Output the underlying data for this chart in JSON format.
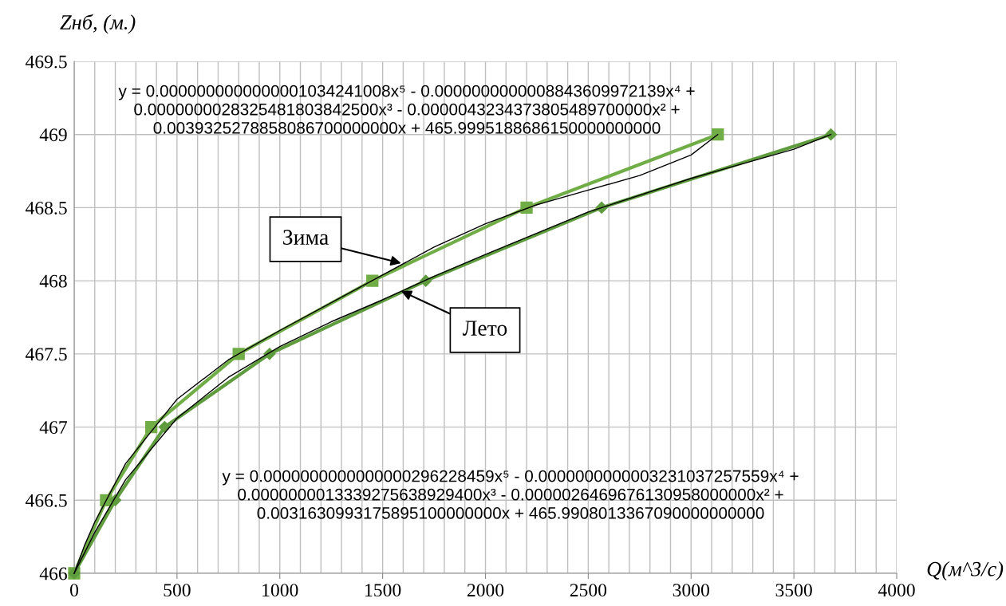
{
  "chart_data": {
    "type": "line",
    "xlabel": "Q(м^3/с)",
    "ylabel": "Zнб, (м.)",
    "xlim": [
      0,
      4000
    ],
    "ylim": [
      466,
      469.5
    ],
    "xticks": [
      0,
      {
        "value": 100,
        "label": null
      },
      {
        "value": 200,
        "label": null
      },
      {
        "value": 300,
        "label": null
      },
      {
        "value": 400,
        "label": null
      },
      500,
      {
        "value": 600,
        "label": null
      },
      {
        "value": 700,
        "label": null
      },
      {
        "value": 800,
        "label": null
      },
      {
        "value": 900,
        "label": null
      },
      1000,
      {
        "value": 1100,
        "label": null
      },
      {
        "value": 1200,
        "label": null
      },
      {
        "value": 1300,
        "label": null
      },
      {
        "value": 1400,
        "label": null
      },
      1500,
      {
        "value": 1600,
        "label": null
      },
      {
        "value": 1700,
        "label": null
      },
      {
        "value": 1800,
        "label": null
      },
      {
        "value": 1900,
        "label": null
      },
      2000,
      {
        "value": 2100,
        "label": null
      },
      {
        "value": 2200,
        "label": null
      },
      {
        "value": 2300,
        "label": null
      },
      {
        "value": 2400,
        "label": null
      },
      2500,
      {
        "value": 2600,
        "label": null
      },
      {
        "value": 2700,
        "label": null
      },
      {
        "value": 2800,
        "label": null
      },
      {
        "value": 2900,
        "label": null
      },
      3000,
      {
        "value": 3100,
        "label": null
      },
      {
        "value": 3200,
        "label": null
      },
      {
        "value": 3300,
        "label": null
      },
      {
        "value": 3400,
        "label": null
      },
      3500,
      {
        "value": 3600,
        "label": null
      },
      {
        "value": 3700,
        "label": null
      },
      {
        "value": 3800,
        "label": null
      },
      {
        "value": 3900,
        "label": null
      },
      4000
    ],
    "yticks": [
      466,
      466.5,
      467,
      467.5,
      468,
      468.5,
      469,
      469.5
    ],
    "grid": true,
    "legend": false,
    "series": [
      {
        "color": "#70ad47",
        "marker": "square",
        "x": [
          0,
          155,
          375,
          800,
          1450,
          2200,
          3130
        ],
        "values": [
          466,
          466.5,
          467,
          467.5,
          468,
          468.5,
          469
        ]
      },
      {
        "color": "#5e9c3e",
        "marker": "diamond",
        "x": [
          0,
          200,
          440,
          950,
          1710,
          2565,
          3680
        ],
        "values": [
          466,
          466.5,
          467,
          467.5,
          468,
          468.5,
          469
        ]
      },
      {
        "color": "#000000",
        "marker": "none",
        "x": [
          0,
          50,
          100,
          250,
          500,
          750,
          1000,
          1250,
          1500,
          1750,
          2000,
          2250,
          2500,
          2750,
          3000,
          3130
        ],
        "values": [
          466.0,
          466.19,
          466.35,
          466.75,
          467.19,
          467.46,
          467.66,
          467.85,
          468.04,
          468.23,
          468.39,
          468.52,
          468.62,
          468.72,
          468.86,
          469.0
        ]
      },
      {
        "color": "#000000",
        "marker": "none",
        "x": [
          0,
          50,
          100,
          250,
          500,
          750,
          1000,
          1250,
          1500,
          1750,
          2000,
          2500,
          3000,
          3250,
          3500,
          3680
        ],
        "values": [
          466,
          466.14,
          466.28,
          466.64,
          467.06,
          467.34,
          467.55,
          467.72,
          467.87,
          468.03,
          468.18,
          468.47,
          468.7,
          468.8,
          468.9,
          469.0
        ]
      }
    ],
    "annotations": [
      "y = 0.0000000000000001034241008x⁵ - 0.0000000000008843609972139x⁴ +\n0.0000000028325481803842500x³ - 0.0000043234373805489700000x² +\n0.0039325278858086700000000x + 465.9995188686150000000000",
      "y = 0.0000000000000000296228459x⁵ - 0.0000000000003231037257559x⁴ +\n0.0000000013339275638929400x³ - 0.0000026469676130958000000x² +\n0.0031630993175895100000000x + 465.9908013367090000000000",
      {
        "text": "Зима",
        "x": 1590,
        "y": 468.12
      },
      {
        "text": "Лето",
        "x": 1590,
        "y": 467.93
      }
    ]
  }
}
